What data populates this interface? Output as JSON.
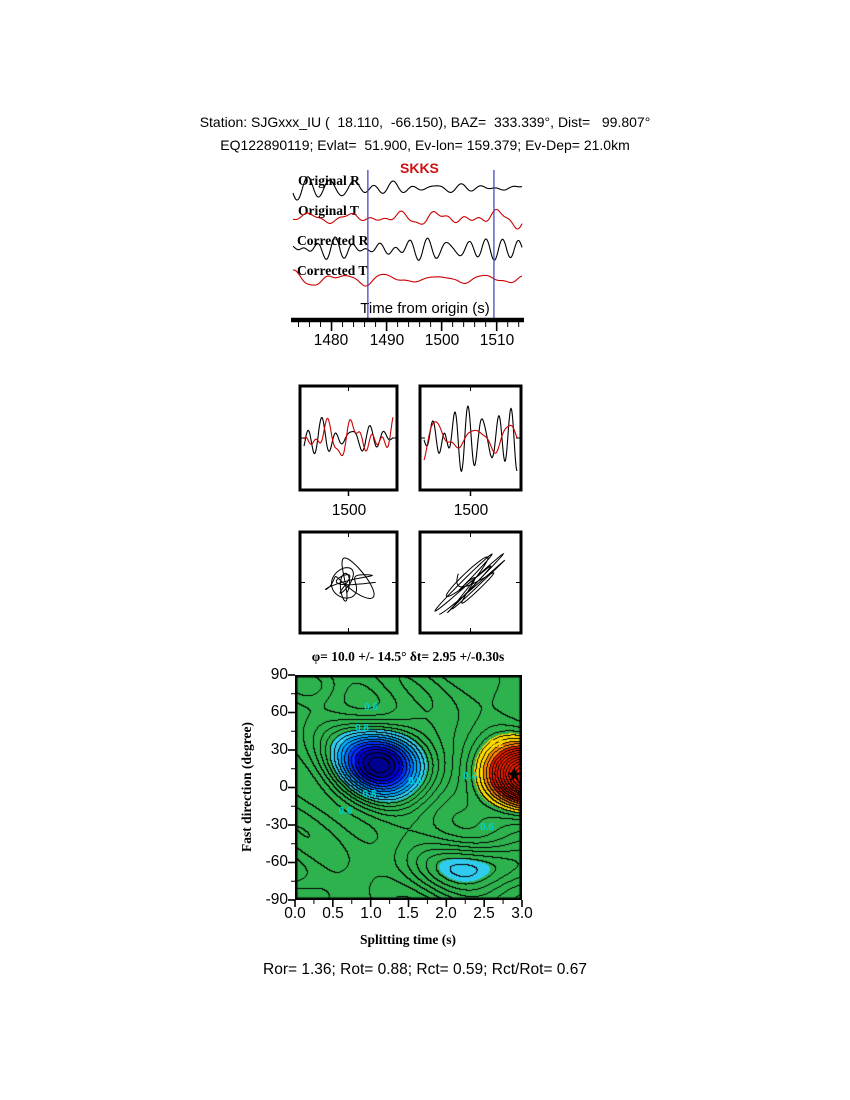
{
  "header": {
    "line1": "Station: SJGxxx_IU (  18.110,  -66.150), BAZ=  333.339°, Dist=   99.807°",
    "line2": "EQ122890119; Evlat=  51.900, Ev-lon= 159.379; Ev-Dep= 21.0km"
  },
  "waveform": {
    "phase_label": "SKKS",
    "traces": [
      "Original R",
      "Original T",
      "Corrected R",
      "Corrected T"
    ],
    "xlabel": "Time from origin (s)",
    "xticks": [
      "1480",
      "1490",
      "1500",
      "1510"
    ]
  },
  "windows": {
    "left_xtick": "1500",
    "right_xtick": "1500"
  },
  "misfit": {
    "title": "φ= 10.0 +/- 14.5° δt= 2.95 +/-0.30s",
    "ylabel": "Fast direction (degree)",
    "xlabel": "Splitting time (s)",
    "yticks": [
      "90",
      "60",
      "30",
      "0",
      "-30",
      "-60",
      "-90"
    ],
    "xticks": [
      "0.0",
      "0.5",
      "1.0",
      "1.5",
      "2.0",
      "2.5",
      "3.0"
    ]
  },
  "footer": {
    "text": "Ror= 1.36; Rot= 0.88; Rct= 0.59; Rct/Rot= 0.67"
  },
  "chart_data": [
    {
      "id": "seismogram-panel",
      "type": "line",
      "title": "SKKS",
      "xlabel": "Time from origin (s)",
      "x_range": [
        1473,
        1514.6
      ],
      "xticks": [
        1480,
        1490,
        1500,
        1510
      ],
      "window": [
        1486.6,
        1509.5
      ],
      "window_line_color": "#4848c8",
      "traces": [
        {
          "name": "Original R",
          "color": "#000000",
          "seed": 11,
          "amp": 12
        },
        {
          "name": "Original T",
          "color": "#cc0000",
          "seed": 23,
          "amp": 11
        },
        {
          "name": "Corrected R",
          "color": "#000000",
          "seed": 37,
          "amp": 12
        },
        {
          "name": "Corrected T",
          "color": "#cc0000",
          "seed": 51,
          "amp": 9
        }
      ],
      "note": "waveform shapes are synthetic stand-ins; exact samples unreadable in source pixels"
    },
    {
      "id": "window-panels",
      "type": "line",
      "xticks": [
        1500
      ],
      "panels": [
        {
          "traces": [
            "Original R",
            "Original T"
          ]
        },
        {
          "traces": [
            "Corrected R",
            "Corrected T"
          ]
        }
      ]
    },
    {
      "id": "particle-motion-panels",
      "type": "scatter",
      "panels": [
        {
          "label": "original particle motion"
        },
        {
          "label": "corrected particle motion"
        }
      ]
    },
    {
      "id": "misfit-surface",
      "type": "heatmap",
      "title": "φ= 10.0 +/- 14.5° δt= 2.95 +/-0.30s",
      "xlabel": "Splitting time (s)",
      "ylabel": "Fast direction (degree)",
      "xlim": [
        0,
        3
      ],
      "ylim": [
        -90,
        90
      ],
      "xticks": [
        0.0,
        0.5,
        1.0,
        1.5,
        2.0,
        2.5,
        3.0
      ],
      "yticks": [
        90,
        60,
        30,
        0,
        -30,
        -60,
        -90
      ],
      "best_solution": {
        "fast_direction_deg": 10.0,
        "fast_direction_err_deg": 14.5,
        "split_time_s": 2.95,
        "split_time_err_s": 0.3,
        "marker": "black-star",
        "marker_xy": [
          2.9,
          10
        ]
      },
      "contour_interval": 0.035,
      "field_terms": {
        "base": 0.52,
        "gaussians": [
          {
            "cx": 1.15,
            "cy": 20,
            "sx": 0.62,
            "sy": 30,
            "a": -0.5
          },
          {
            "cx": 3.08,
            "cy": 8,
            "sx": 0.6,
            "sy": 26,
            "a": 0.58
          },
          {
            "cx": 2.55,
            "cy": -62,
            "sx": 0.85,
            "sy": 20,
            "a": -0.22
          },
          {
            "cx": 0.05,
            "cy": -88,
            "sx": 0.45,
            "sy": 16,
            "a": -0.1
          },
          {
            "cx": 0.15,
            "cy": 82,
            "sx": 0.5,
            "sy": 14,
            "a": -0.08
          }
        ],
        "ripples": [
          {
            "kx": 4.2,
            "ky": 0.055,
            "phase": 0,
            "a": 0.035
          },
          {
            "kx": 1.7,
            "ky": 0.085,
            "phase": 1.3,
            "a": 0.03
          }
        ]
      },
      "bands": [
        {
          "max": 0.05,
          "color": "#000090"
        },
        {
          "max": 0.1,
          "color": "#0000d8"
        },
        {
          "max": 0.16,
          "color": "#0030ff"
        },
        {
          "max": 0.22,
          "color": "#0070ff"
        },
        {
          "max": 0.28,
          "color": "#00aaff"
        },
        {
          "max": 0.34,
          "color": "#30ccf0"
        },
        {
          "max": 0.62,
          "color": "#2eb24e"
        },
        {
          "max": 0.7,
          "color": "#ffdc00"
        },
        {
          "max": 0.78,
          "color": "#ff8800"
        },
        {
          "max": 99,
          "color": "#e81c00"
        }
      ],
      "annotations": [
        {
          "text": "0.6",
          "x": 1.02,
          "y": 63,
          "color": "#00d0d0"
        },
        {
          "text": "0.8",
          "x": 0.9,
          "y": 46,
          "color": "#00d0d0"
        },
        {
          "text": "0.8",
          "x": 1.0,
          "y": -7,
          "color": "#00d0d0"
        },
        {
          "text": "0.6",
          "x": 0.68,
          "y": -20,
          "color": "#00d0d0"
        },
        {
          "text": "0.6",
          "x": 1.6,
          "y": 4,
          "color": "#00d0d0"
        },
        {
          "text": "0.4",
          "x": 2.33,
          "y": 8,
          "color": "#00d0d0"
        },
        {
          "text": "0.2",
          "x": 2.68,
          "y": 33,
          "color": "#ffd700"
        },
        {
          "text": "0.6",
          "x": 2.55,
          "y": -33,
          "color": "#00d0d0"
        }
      ]
    }
  ]
}
